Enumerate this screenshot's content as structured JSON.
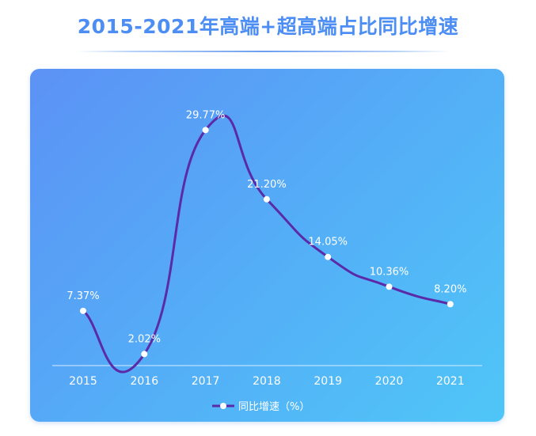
{
  "header": {
    "title": "2015-2021年高端+超高端占比同比增速"
  },
  "chart_data": {
    "type": "line",
    "x": [
      "2015",
      "2016",
      "2017",
      "2018",
      "2019",
      "2020",
      "2021"
    ],
    "series": [
      {
        "name": "同比增速（%）",
        "values": [
          7.37,
          2.02,
          29.77,
          21.2,
          14.05,
          10.36,
          8.2
        ],
        "labels": [
          "7.37%",
          "2.02%",
          "29.77%",
          "21.20%",
          "14.05%",
          "10.36%",
          "8.20%"
        ]
      }
    ],
    "ylim": [
      0,
      33
    ],
    "grid": false,
    "legend": "bottom-center",
    "colors": {
      "line": "#5b2aa8",
      "marker": "#ffffff",
      "text": "#ffffff",
      "axis": "#d6ecff"
    }
  }
}
